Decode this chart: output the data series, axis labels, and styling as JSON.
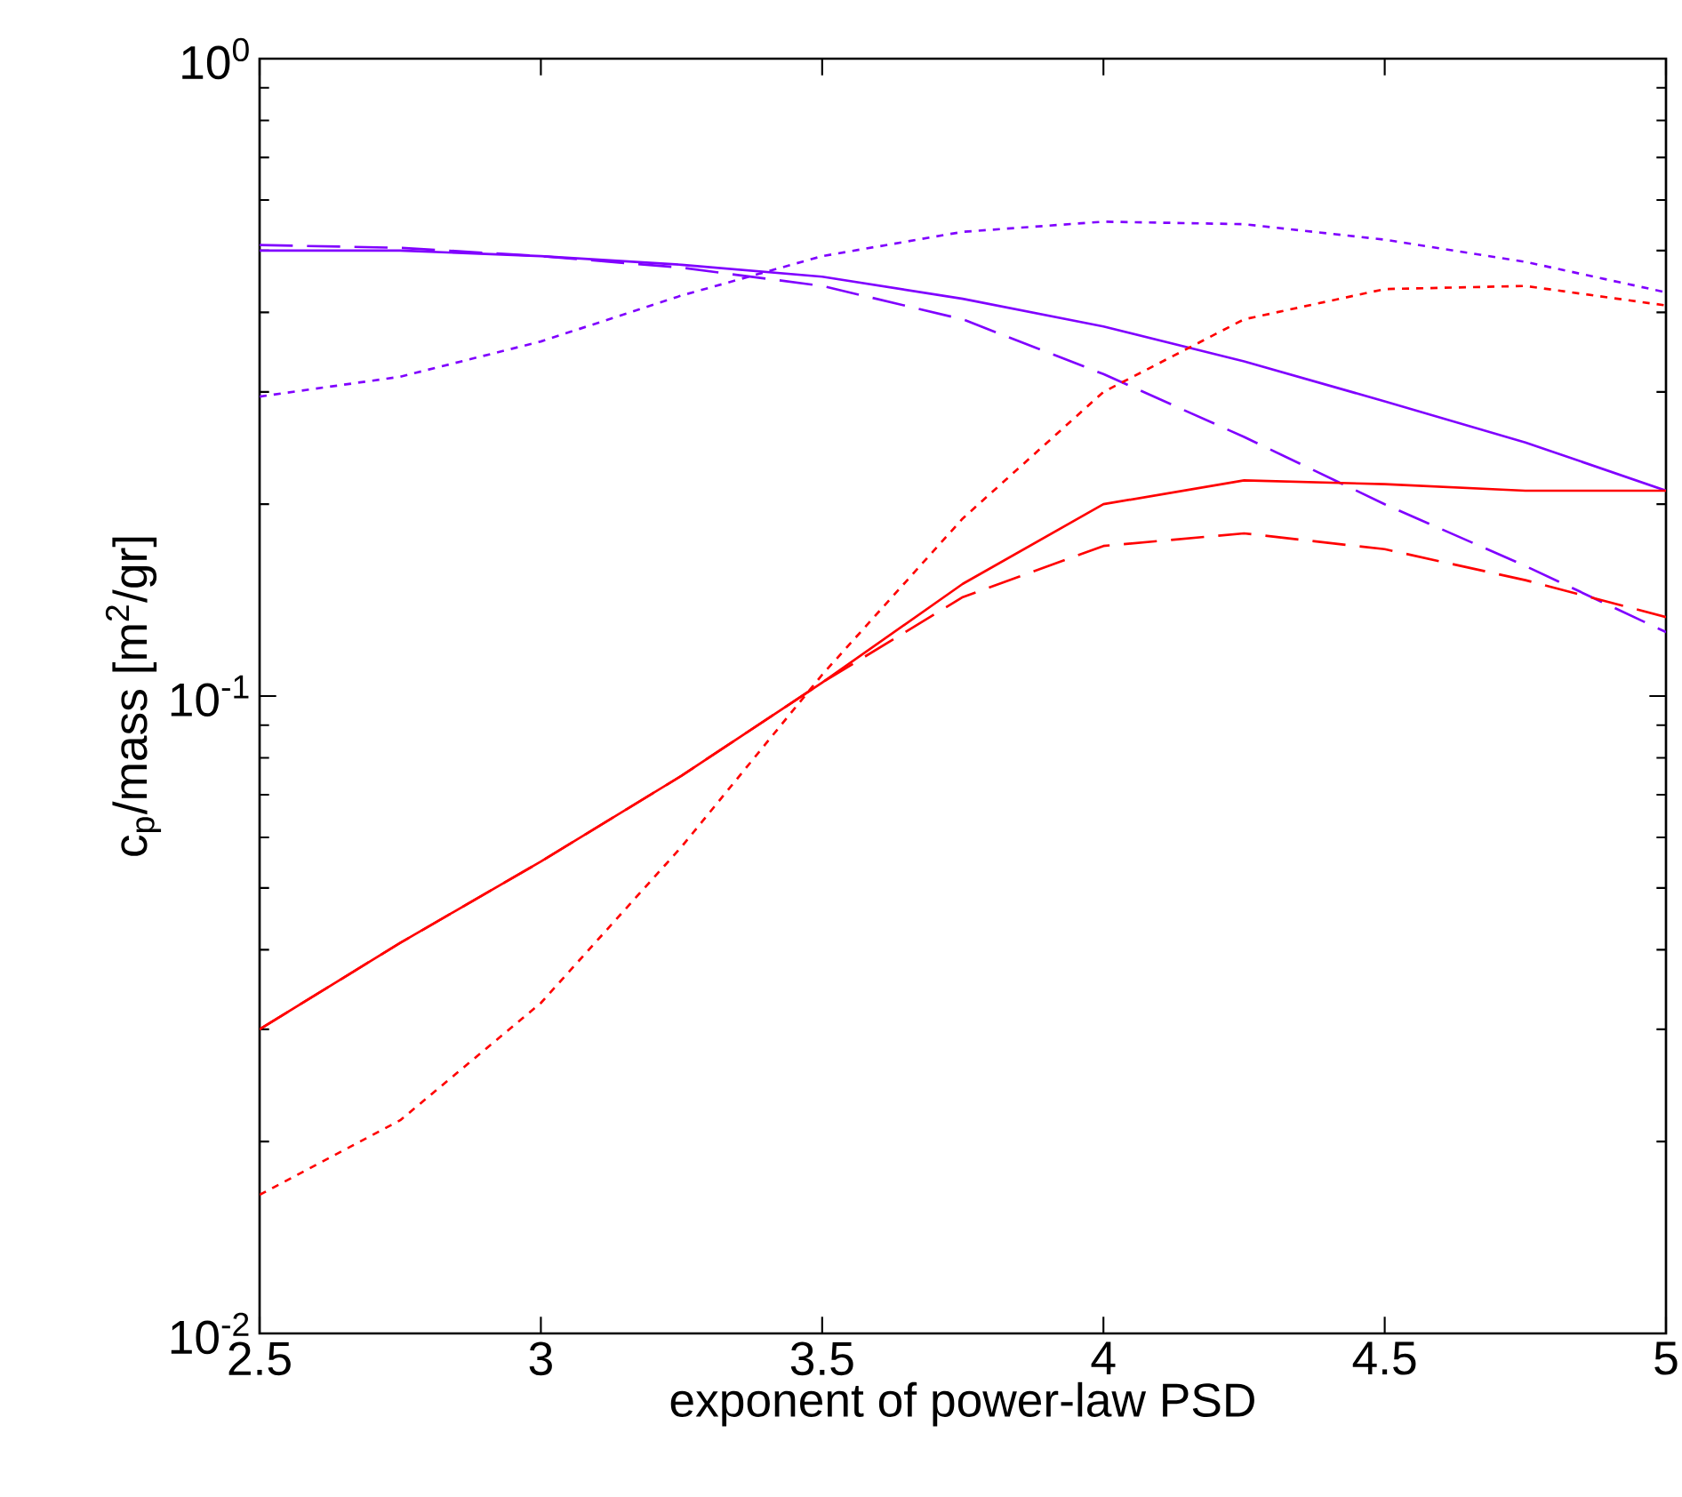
{
  "chart_data": {
    "type": "line",
    "xlabel": "exponent of power-law PSD",
    "ylabel": "c$_{p}$/mass [m$^{2}$/gr]",
    "log": "y",
    "xlim": [
      2.5,
      5
    ],
    "ylim": [
      0.01,
      1
    ],
    "xticks": [
      2.5,
      3,
      3.5,
      4,
      4.5,
      5
    ],
    "yticks": [
      {
        "value": 0.01,
        "label": "10$^{-2}$"
      },
      {
        "value": 0.1,
        "label": "10$^{-1}$"
      },
      {
        "value": 1,
        "label": "10$^{0}$"
      }
    ],
    "grid": false,
    "marker": "none",
    "series": [
      {
        "color": "#8000ff",
        "line_style": "solid",
        "x": [
          2.5,
          2.75,
          3,
          3.25,
          3.5,
          3.75,
          4,
          4.25,
          4.5,
          4.75,
          5
        ],
        "values": [
          0.5,
          0.5,
          0.49,
          0.475,
          0.455,
          0.42,
          0.38,
          0.335,
          0.29,
          0.25,
          0.21
        ]
      },
      {
        "color": "#8000ff",
        "line_style": "dashed",
        "x": [
          2.5,
          2.75,
          3,
          3.25,
          3.5,
          3.75,
          4,
          4.25,
          4.5,
          4.75,
          5
        ],
        "values": [
          0.51,
          0.505,
          0.49,
          0.47,
          0.44,
          0.39,
          0.32,
          0.255,
          0.2,
          0.16,
          0.126
        ]
      },
      {
        "color": "#8000ff",
        "line_style": "dotted",
        "x": [
          2.5,
          2.75,
          3,
          3.25,
          3.5,
          3.75,
          4,
          4.25,
          4.5,
          4.75,
          5
        ],
        "values": [
          0.295,
          0.317,
          0.36,
          0.425,
          0.49,
          0.535,
          0.555,
          0.55,
          0.52,
          0.48,
          0.43
        ]
      },
      {
        "color": "#ff0000",
        "line_style": "solid",
        "x": [
          2.5,
          2.75,
          3,
          3.25,
          3.5,
          3.75,
          4,
          4.25,
          4.5,
          4.75,
          5
        ],
        "values": [
          0.03,
          0.041,
          0.055,
          0.075,
          0.105,
          0.15,
          0.2,
          0.218,
          0.215,
          0.21,
          0.21
        ]
      },
      {
        "color": "#ff0000",
        "line_style": "dashed",
        "x": [
          2.5,
          2.75,
          3,
          3.25,
          3.5,
          3.75,
          4,
          4.25,
          4.5,
          4.75,
          5
        ],
        "values": [
          0.03,
          0.041,
          0.055,
          0.075,
          0.105,
          0.143,
          0.172,
          0.18,
          0.17,
          0.152,
          0.133
        ]
      },
      {
        "color": "#ff0000",
        "line_style": "dotted",
        "x": [
          2.5,
          2.75,
          3,
          3.25,
          3.5,
          3.75,
          4,
          4.25,
          4.5,
          4.75,
          5
        ],
        "values": [
          0.0165,
          0.0216,
          0.033,
          0.058,
          0.108,
          0.19,
          0.3,
          0.39,
          0.435,
          0.44,
          0.41
        ]
      }
    ]
  }
}
